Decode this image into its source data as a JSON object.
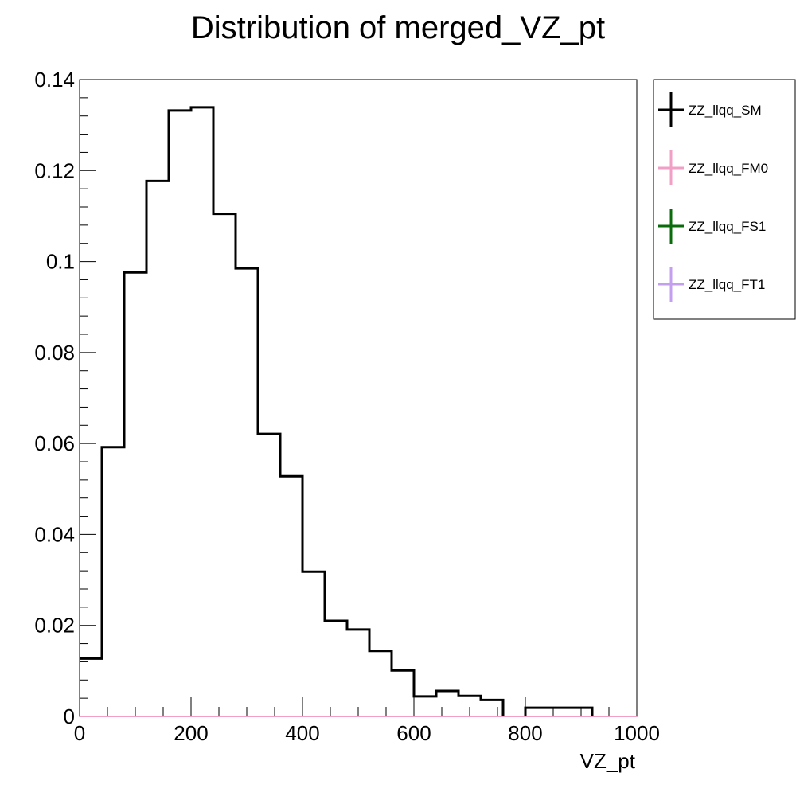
{
  "chart_data": {
    "type": "histogram",
    "title": "Distribution of merged_VZ_pt",
    "xlabel": "VZ_pt",
    "ylabel": "",
    "xlim": [
      0,
      1000
    ],
    "ylim": [
      0,
      0.14
    ],
    "x_ticks": [
      0,
      200,
      400,
      600,
      800,
      1000
    ],
    "x_tick_labels": [
      "0",
      "200",
      "400",
      "600",
      "800",
      "1000"
    ],
    "y_ticks": [
      0,
      0.02,
      0.04,
      0.06,
      0.08,
      0.1,
      0.12,
      0.14
    ],
    "y_tick_labels": [
      "0",
      "0.02",
      "0.04",
      "0.06",
      "0.08",
      "0.1",
      "0.12",
      "0.14"
    ],
    "grid": false,
    "legend_position": "right",
    "bin_edges": [
      0,
      40,
      80,
      120,
      160,
      200,
      240,
      280,
      320,
      360,
      400,
      440,
      480,
      520,
      560,
      600,
      640,
      680,
      720,
      760,
      800,
      840,
      880,
      920,
      960,
      1000
    ],
    "series": [
      {
        "name": "ZZ_llqq_SM",
        "color": "#000000",
        "values": [
          0.0127,
          0.0592,
          0.0976,
          0.1177,
          0.1332,
          0.1339,
          0.1105,
          0.0985,
          0.0621,
          0.0528,
          0.0318,
          0.021,
          0.0191,
          0.0144,
          0.0101,
          0.0044,
          0.0056,
          0.0045,
          0.0036,
          0.0,
          0.0019,
          0.0019,
          0.0019,
          0.0,
          0.0
        ]
      },
      {
        "name": "ZZ_llqq_FM0",
        "color": "#f29fc6",
        "values": [
          0,
          0,
          0,
          0,
          0,
          0,
          0,
          0,
          0,
          0,
          0,
          0,
          0,
          0,
          0,
          0,
          0,
          0,
          0,
          0,
          0,
          0,
          0,
          0,
          0
        ]
      },
      {
        "name": "ZZ_llqq_FS1",
        "color": "#0a6b0a",
        "values": [
          0,
          0,
          0,
          0,
          0,
          0,
          0,
          0,
          0,
          0,
          0,
          0,
          0,
          0,
          0,
          0,
          0,
          0,
          0,
          0,
          0,
          0,
          0,
          0,
          0
        ]
      },
      {
        "name": "ZZ_llqq_FT1",
        "color": "#c49ff0",
        "values": [
          0,
          0,
          0,
          0,
          0,
          0,
          0,
          0,
          0,
          0,
          0,
          0,
          0,
          0,
          0,
          0,
          0,
          0,
          0,
          0,
          0,
          0,
          0,
          0,
          0
        ]
      }
    ]
  }
}
